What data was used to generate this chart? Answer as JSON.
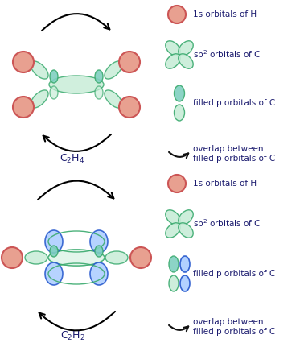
{
  "bg_color": "#ffffff",
  "green_stroke": "#3aaa6e",
  "green_fill": "#c8edd8",
  "blue_stroke": "#2255cc",
  "blue_fill": "#aaccff",
  "teal_fill": "#80d0c0",
  "salmon_stroke": "#cc5555",
  "salmon_fill": "#e8a090",
  "arrow_color": "#111111",
  "label_color": "#1a1a6e",
  "text_color": "#1a1a6e",
  "c2h4_label": "C$_2$H$_4$",
  "c2h2_label": "C$_2$H$_2$",
  "legend_items": [
    "1s orbitals of H",
    "sp$^2$ orbitals of C",
    "filled p orbitals of C",
    "overlap between\nfilled p orbitals of C"
  ],
  "fig_width": 3.78,
  "fig_height": 4.26
}
